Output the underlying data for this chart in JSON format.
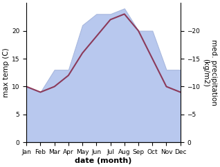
{
  "months": [
    "Jan",
    "Feb",
    "Mar",
    "Apr",
    "May",
    "Jun",
    "Jul",
    "Aug",
    "Sep",
    "Oct",
    "Nov",
    "Dec"
  ],
  "temperature": [
    10,
    9,
    10,
    12,
    16,
    19,
    22,
    23,
    20,
    15,
    10,
    9
  ],
  "precipitation": [
    10,
    9,
    13,
    13,
    21,
    23,
    23,
    24,
    20,
    20,
    13,
    13
  ],
  "temp_color": "#8B3A5A",
  "precip_fill_color": "#b8c8ee",
  "precip_edge_color": "#a8b8de",
  "background_color": "#ffffff",
  "ylim": [
    0,
    25
  ],
  "ylabel_left": "max temp (C)",
  "ylabel_right": "med. precipitation\n(kg/m2)",
  "xlabel": "date (month)",
  "temp_linewidth": 1.5,
  "xlabel_fontsize": 8,
  "ylabel_fontsize": 7.5,
  "tick_fontsize": 6.5,
  "yticks": [
    0,
    5,
    10,
    15,
    20
  ],
  "ytick_labels_right": [
    "0",
    "5",
    "10",
    "15",
    "20"
  ]
}
